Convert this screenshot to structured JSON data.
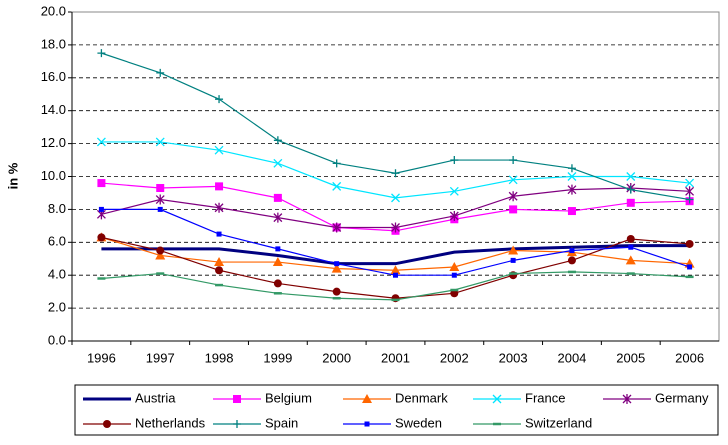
{
  "chart_data": {
    "type": "line",
    "y_label": "in %",
    "categories": [
      "1996",
      "1997",
      "1998",
      "1999",
      "2000",
      "2001",
      "2002",
      "2003",
      "2004",
      "2005",
      "2006"
    ],
    "ylim": [
      0,
      20
    ],
    "yticks": [
      {
        "value": 0,
        "label": "0.0"
      },
      {
        "value": 2,
        "label": "2.0"
      },
      {
        "value": 4,
        "label": "4.0"
      },
      {
        "value": 6,
        "label": "6.0"
      },
      {
        "value": 8,
        "label": "8.0"
      },
      {
        "value": 10,
        "label": "10.0"
      },
      {
        "value": 12,
        "label": "12.0"
      },
      {
        "value": 14,
        "label": "14.0"
      },
      {
        "value": 16,
        "label": "16.0"
      },
      {
        "value": 18,
        "label": "18.0"
      },
      {
        "value": 20,
        "label": "20.0"
      }
    ],
    "grid": true,
    "legend": "bottom",
    "series": [
      {
        "name": "Austria",
        "color": "#000080",
        "marker": "none",
        "values": [
          5.6,
          5.6,
          5.6,
          5.2,
          4.7,
          4.7,
          5.4,
          5.6,
          5.7,
          5.8,
          5.8
        ]
      },
      {
        "name": "Belgium",
        "color": "#ff00ff",
        "marker": "square",
        "values": [
          9.6,
          9.3,
          9.4,
          8.7,
          6.9,
          6.7,
          7.4,
          8.0,
          7.9,
          8.4,
          8.5
        ]
      },
      {
        "name": "Denmark",
        "color": "#ff6600",
        "marker": "triangle",
        "values": [
          6.3,
          5.2,
          4.8,
          4.8,
          4.4,
          4.3,
          4.5,
          5.5,
          5.4,
          4.9,
          4.7
        ]
      },
      {
        "name": "France",
        "color": "#00e5ff",
        "marker": "x",
        "values": [
          12.1,
          12.1,
          11.6,
          10.8,
          9.4,
          8.7,
          9.1,
          9.8,
          10.0,
          10.0,
          9.6
        ]
      },
      {
        "name": "Germany",
        "color": "#800080",
        "marker": "asterisk",
        "values": [
          7.7,
          8.6,
          8.1,
          7.5,
          6.9,
          6.9,
          7.6,
          8.8,
          9.2,
          9.3,
          9.1
        ]
      },
      {
        "name": "Netherlands",
        "color": "#800000",
        "marker": "circle",
        "values": [
          6.3,
          5.5,
          4.3,
          3.5,
          3.0,
          2.6,
          2.9,
          4.0,
          4.9,
          6.2,
          5.9
        ]
      },
      {
        "name": "Spain",
        "color": "#008080",
        "marker": "plus",
        "values": [
          17.5,
          16.3,
          14.7,
          12.2,
          10.8,
          10.2,
          11.0,
          11.0,
          10.5,
          9.2,
          8.6
        ]
      },
      {
        "name": "Sweden",
        "color": "#0000ff",
        "marker": "smallsquare",
        "values": [
          8.0,
          8.0,
          6.5,
          5.6,
          4.7,
          4.0,
          4.0,
          4.9,
          5.5,
          5.7,
          4.5
        ]
      },
      {
        "name": "Switzerland",
        "color": "#339966",
        "marker": "dash",
        "values": [
          3.8,
          4.1,
          3.4,
          2.9,
          2.6,
          2.5,
          3.1,
          4.1,
          4.2,
          4.1,
          3.9
        ]
      }
    ]
  }
}
